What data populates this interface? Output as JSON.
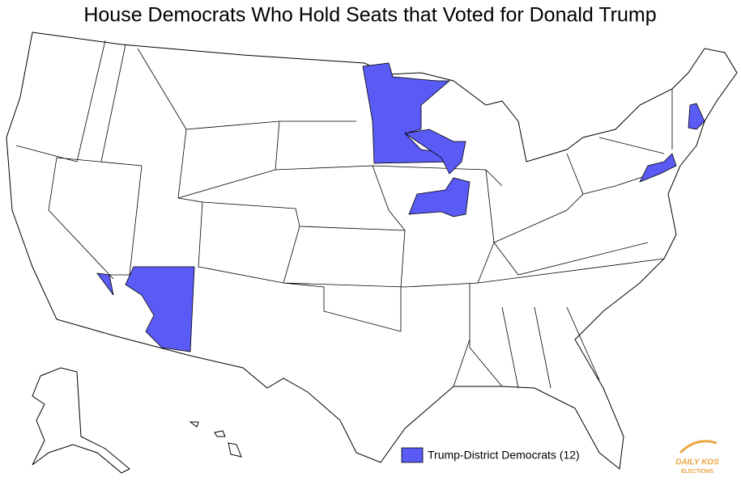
{
  "title": "House Democrats Who Hold Seats that Voted for Donald Trump",
  "legend": {
    "label": "Trump-District Democrats (12)"
  },
  "logo": {
    "line1": "DAILY KOS",
    "line2": "ELECTIONS"
  }
}
